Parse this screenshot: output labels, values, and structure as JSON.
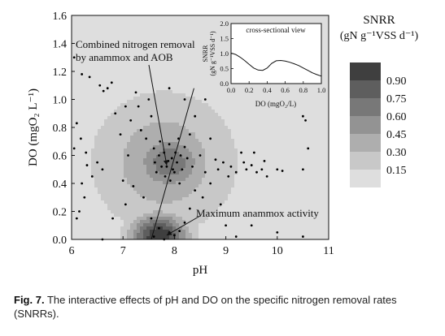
{
  "chart_data": [
    {
      "type": "contour",
      "xlabel": "pH",
      "ylabel": "DO (mgO₂ L⁻¹)",
      "xlim": [
        6,
        11
      ],
      "ylim": [
        0,
        1.6
      ],
      "xticks": [
        "6",
        "7",
        "8",
        "9",
        "10",
        "11"
      ],
      "yticks": [
        "0.0",
        "0.2",
        "0.4",
        "0.6",
        "0.8",
        "1.0",
        "1.2",
        "1.4",
        "1.6"
      ],
      "legend": {
        "title_line1": "SNRR",
        "title_line2": "(gN g⁻¹VSS d⁻¹)",
        "placement": "right",
        "levels": [
          {
            "label": "0.90",
            "color": "#3f3f3f"
          },
          {
            "label": "0.75",
            "color": "#5e5e5e"
          },
          {
            "label": "0.60",
            "color": "#787878"
          },
          {
            "label": "0.45",
            "color": "#939393"
          },
          {
            "label": "0.30",
            "color": "#aeaeae"
          },
          {
            "label": "0.15",
            "color": "#c8c8c8"
          },
          {
            "label": "",
            "color": "#dedede"
          }
        ]
      },
      "annotations": [
        {
          "line1": "Combined nitrogen removal",
          "line2": "by anammox and AOB",
          "target": [
            7.85,
            0.53
          ]
        },
        {
          "line1": "Maximum anammox activity",
          "target": [
            7.85,
            0.03
          ]
        }
      ],
      "ridge_line": {
        "x": [
          7.55,
          8.38
        ],
        "y": [
          0.0,
          1.08
        ]
      },
      "points": [
        [
          6.05,
          1.3
        ],
        [
          6.2,
          1.18
        ],
        [
          6.35,
          1.16
        ],
        [
          6.55,
          1.1
        ],
        [
          6.62,
          1.06
        ],
        [
          6.7,
          1.08
        ],
        [
          6.78,
          1.12
        ],
        [
          6.05,
          0.65
        ],
        [
          6.1,
          0.83
        ],
        [
          6.18,
          0.72
        ],
        [
          6.28,
          0.62
        ],
        [
          6.3,
          0.53
        ],
        [
          6.2,
          0.4
        ],
        [
          6.25,
          0.3
        ],
        [
          6.15,
          0.2
        ],
        [
          6.1,
          0.15
        ],
        [
          6.4,
          0.45
        ],
        [
          6.5,
          0.55
        ],
        [
          6.6,
          0.5
        ],
        [
          6.85,
          0.9
        ],
        [
          6.95,
          0.75
        ],
        [
          7.05,
          0.95
        ],
        [
          7.1,
          0.6
        ],
        [
          7.15,
          0.85
        ],
        [
          7.3,
          0.95
        ],
        [
          7.35,
          0.78
        ],
        [
          7.45,
          0.72
        ],
        [
          7.5,
          1.0
        ],
        [
          7.55,
          0.88
        ],
        [
          7.6,
          0.65
        ],
        [
          7.62,
          0.55
        ],
        [
          7.65,
          0.48
        ],
        [
          7.7,
          0.6
        ],
        [
          7.72,
          0.7
        ],
        [
          7.75,
          0.52
        ],
        [
          7.8,
          0.62
        ],
        [
          7.82,
          0.45
        ],
        [
          7.85,
          0.52
        ],
        [
          7.88,
          0.56
        ],
        [
          7.9,
          0.68
        ],
        [
          7.92,
          0.42
        ],
        [
          7.95,
          0.58
        ],
        [
          7.97,
          0.5
        ],
        [
          8.0,
          0.48
        ],
        [
          8.02,
          0.62
        ],
        [
          8.05,
          0.55
        ],
        [
          8.08,
          0.72
        ],
        [
          8.1,
          0.4
        ],
        [
          8.12,
          0.6
        ],
        [
          8.15,
          0.5
        ],
        [
          8.2,
          0.66
        ],
        [
          8.25,
          0.58
        ],
        [
          8.3,
          0.75
        ],
        [
          8.35,
          0.52
        ],
        [
          8.4,
          0.88
        ],
        [
          8.5,
          0.6
        ],
        [
          8.6,
          0.48
        ],
        [
          8.7,
          0.72
        ],
        [
          8.8,
          0.57
        ],
        [
          8.85,
          0.5
        ],
        [
          8.95,
          0.55
        ],
        [
          9.05,
          0.45
        ],
        [
          9.1,
          0.52
        ],
        [
          9.2,
          0.48
        ],
        [
          9.3,
          0.62
        ],
        [
          9.35,
          0.55
        ],
        [
          9.4,
          0.5
        ],
        [
          9.5,
          0.53
        ],
        [
          9.55,
          0.62
        ],
        [
          9.6,
          0.48
        ],
        [
          9.7,
          0.5
        ],
        [
          9.75,
          0.56
        ],
        [
          9.8,
          0.45
        ],
        [
          10.0,
          0.5
        ],
        [
          10.1,
          0.49
        ],
        [
          10.5,
          0.88
        ],
        [
          10.55,
          0.85
        ],
        [
          10.6,
          0.65
        ],
        [
          10.5,
          0.5
        ],
        [
          10.5,
          0.02
        ],
        [
          7.0,
          0.42
        ],
        [
          7.05,
          0.25
        ],
        [
          7.2,
          0.38
        ],
        [
          7.4,
          0.3
        ],
        [
          7.55,
          0.15
        ],
        [
          7.6,
          0.02
        ],
        [
          7.7,
          0.08
        ],
        [
          7.8,
          0.0
        ],
        [
          7.9,
          0.05
        ],
        [
          8.0,
          0.03
        ],
        [
          8.1,
          0.06
        ],
        [
          8.2,
          0.12
        ],
        [
          8.3,
          0.22
        ],
        [
          8.4,
          0.35
        ],
        [
          8.55,
          0.3
        ],
        [
          8.7,
          0.4
        ],
        [
          8.9,
          0.25
        ],
        [
          9.0,
          0.1
        ],
        [
          9.2,
          0.02
        ],
        [
          6.6,
          0.0
        ],
        [
          6.8,
          0.15
        ],
        [
          9.5,
          0.1
        ],
        [
          10.0,
          0.05
        ],
        [
          7.25,
          1.05
        ],
        [
          7.9,
          1.08
        ],
        [
          8.2,
          1.0
        ],
        [
          8.6,
          1.0
        ]
      ],
      "inset": {
        "type": "line",
        "title": "cross-sectional view",
        "xlabel": "DO (mgO₂/L)",
        "ylabel_line1": "SNRR",
        "ylabel_line2": "(gN g⁻¹VSS d⁻¹)",
        "xlim": [
          0,
          1.0
        ],
        "ylim": [
          0,
          2.0
        ],
        "xticks": [
          "0.0",
          "0.2",
          "0.4",
          "0.6",
          "0.8",
          "1.0"
        ],
        "yticks": [
          "0.0",
          "0.5",
          "1.0",
          "1.5",
          "2.0"
        ],
        "x": [
          0.0,
          0.05,
          0.1,
          0.15,
          0.2,
          0.25,
          0.3,
          0.35,
          0.4,
          0.45,
          0.5,
          0.55,
          0.6,
          0.65,
          0.7,
          0.75,
          0.8,
          0.85,
          0.9,
          0.95,
          1.0
        ],
        "y": [
          1.02,
          0.97,
          0.88,
          0.77,
          0.64,
          0.52,
          0.45,
          0.44,
          0.52,
          0.67,
          0.76,
          0.77,
          0.75,
          0.71,
          0.66,
          0.6,
          0.52,
          0.44,
          0.36,
          0.3,
          0.25
        ]
      }
    }
  ],
  "caption": {
    "label": "Fig. 7.",
    "text": "The interactive effects of pH and DO on the specific nitrogen removal rates (SNRRs)."
  }
}
